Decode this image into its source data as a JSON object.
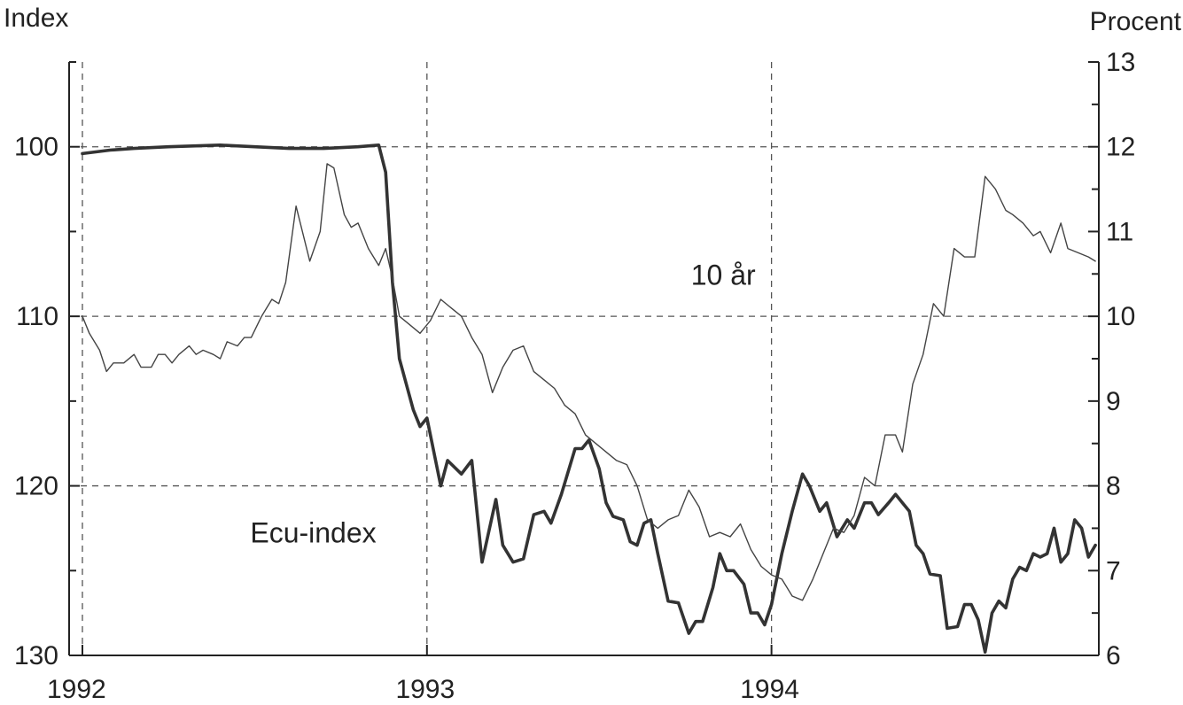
{
  "chart_data": {
    "type": "line",
    "title": "",
    "left_axis": {
      "label": "Index",
      "range": [
        130,
        95
      ],
      "inverted": true,
      "ticks": [
        100,
        110,
        120,
        130
      ]
    },
    "right_axis": {
      "label": "Procent",
      "range": [
        6,
        13
      ],
      "ticks": [
        6,
        7,
        8,
        9,
        10,
        11,
        12,
        13
      ]
    },
    "x_axis": {
      "range": [
        1992.0,
        1994.95
      ],
      "ticks": [
        1992,
        1993,
        1994
      ],
      "tick_labels": [
        "1992",
        "1993",
        "1994"
      ]
    },
    "grid": true,
    "grid_style": "dashed",
    "series": [
      {
        "name": "Ecu-index",
        "axis": "left",
        "color": "#333333",
        "stroke": "thick",
        "points": [
          [
            1992.0,
            100.4
          ],
          [
            1992.08,
            100.2
          ],
          [
            1992.15,
            100.1
          ],
          [
            1992.25,
            100.0
          ],
          [
            1992.4,
            99.9
          ],
          [
            1992.5,
            100.0
          ],
          [
            1992.6,
            100.1
          ],
          [
            1992.7,
            100.1
          ],
          [
            1992.8,
            100.0
          ],
          [
            1992.86,
            99.9
          ],
          [
            1992.88,
            101.5
          ],
          [
            1992.9,
            108.0
          ],
          [
            1992.92,
            112.5
          ],
          [
            1992.94,
            114.0
          ],
          [
            1992.96,
            115.5
          ],
          [
            1992.98,
            116.5
          ],
          [
            1993.0,
            116.0
          ],
          [
            1993.02,
            118.0
          ],
          [
            1993.04,
            120.0
          ],
          [
            1993.06,
            118.5
          ],
          [
            1993.1,
            119.3
          ],
          [
            1993.13,
            118.5
          ],
          [
            1993.16,
            124.5
          ],
          [
            1993.2,
            120.8
          ],
          [
            1993.22,
            123.5
          ],
          [
            1993.25,
            124.5
          ],
          [
            1993.28,
            124.3
          ],
          [
            1993.31,
            121.7
          ],
          [
            1993.34,
            121.5
          ],
          [
            1993.36,
            122.2
          ],
          [
            1993.39,
            120.5
          ],
          [
            1993.43,
            117.8
          ],
          [
            1993.45,
            117.8
          ],
          [
            1993.47,
            117.3
          ],
          [
            1993.5,
            119.0
          ],
          [
            1993.52,
            121.0
          ],
          [
            1993.54,
            121.8
          ],
          [
            1993.57,
            122.0
          ],
          [
            1993.59,
            123.3
          ],
          [
            1993.61,
            123.5
          ],
          [
            1993.63,
            122.2
          ],
          [
            1993.65,
            122.0
          ],
          [
            1993.67,
            124.0
          ],
          [
            1993.7,
            126.8
          ],
          [
            1993.73,
            126.9
          ],
          [
            1993.76,
            128.7
          ],
          [
            1993.78,
            128.0
          ],
          [
            1993.8,
            128.0
          ],
          [
            1993.83,
            126.0
          ],
          [
            1993.85,
            124.0
          ],
          [
            1993.87,
            125.0
          ],
          [
            1993.89,
            125.0
          ],
          [
            1993.92,
            125.8
          ],
          [
            1993.94,
            127.5
          ],
          [
            1993.96,
            127.5
          ],
          [
            1993.98,
            128.2
          ],
          [
            1994.0,
            127.0
          ],
          [
            1994.03,
            124.0
          ],
          [
            1994.06,
            121.5
          ],
          [
            1994.09,
            119.3
          ],
          [
            1994.11,
            120.0
          ],
          [
            1994.14,
            121.5
          ],
          [
            1994.16,
            121.0
          ],
          [
            1994.19,
            123.0
          ],
          [
            1994.22,
            122.0
          ],
          [
            1994.24,
            122.5
          ],
          [
            1994.27,
            121.0
          ],
          [
            1994.29,
            121.0
          ],
          [
            1994.31,
            121.7
          ],
          [
            1994.34,
            121.0
          ],
          [
            1994.36,
            120.5
          ],
          [
            1994.38,
            121.0
          ],
          [
            1994.4,
            121.5
          ],
          [
            1994.42,
            123.5
          ],
          [
            1994.44,
            124.0
          ],
          [
            1994.46,
            125.2
          ],
          [
            1994.49,
            125.3
          ],
          [
            1994.51,
            128.4
          ],
          [
            1994.54,
            128.3
          ],
          [
            1994.56,
            127.0
          ],
          [
            1994.58,
            127.0
          ],
          [
            1994.6,
            127.9
          ],
          [
            1994.62,
            129.8
          ],
          [
            1994.64,
            127.5
          ],
          [
            1994.66,
            126.8
          ],
          [
            1994.68,
            127.2
          ],
          [
            1994.7,
            125.5
          ],
          [
            1994.72,
            124.8
          ],
          [
            1994.74,
            125.0
          ],
          [
            1994.76,
            124.0
          ],
          [
            1994.78,
            124.2
          ],
          [
            1994.8,
            124.0
          ],
          [
            1994.82,
            122.5
          ],
          [
            1994.84,
            124.5
          ],
          [
            1994.86,
            124.0
          ],
          [
            1994.88,
            122.0
          ],
          [
            1994.9,
            122.5
          ],
          [
            1994.92,
            124.2
          ],
          [
            1994.94,
            123.5
          ]
        ]
      },
      {
        "name": "10 år",
        "axis": "right",
        "color": "#444444",
        "stroke": "thin",
        "points": [
          [
            1992.0,
            10.0
          ],
          [
            1992.02,
            9.8
          ],
          [
            1992.05,
            9.6
          ],
          [
            1992.07,
            9.35
          ],
          [
            1992.09,
            9.45
          ],
          [
            1992.12,
            9.45
          ],
          [
            1992.15,
            9.55
          ],
          [
            1992.17,
            9.4
          ],
          [
            1992.2,
            9.4
          ],
          [
            1992.22,
            9.55
          ],
          [
            1992.24,
            9.55
          ],
          [
            1992.26,
            9.45
          ],
          [
            1992.28,
            9.55
          ],
          [
            1992.31,
            9.65
          ],
          [
            1992.33,
            9.55
          ],
          [
            1992.35,
            9.6
          ],
          [
            1992.38,
            9.55
          ],
          [
            1992.4,
            9.5
          ],
          [
            1992.42,
            9.7
          ],
          [
            1992.45,
            9.65
          ],
          [
            1992.47,
            9.75
          ],
          [
            1992.49,
            9.75
          ],
          [
            1992.52,
            10.0
          ],
          [
            1992.55,
            10.2
          ],
          [
            1992.57,
            10.15
          ],
          [
            1992.59,
            10.4
          ],
          [
            1992.62,
            11.3
          ],
          [
            1992.66,
            10.65
          ],
          [
            1992.69,
            11.0
          ],
          [
            1992.71,
            11.8
          ],
          [
            1992.73,
            11.75
          ],
          [
            1992.76,
            11.2
          ],
          [
            1992.78,
            11.05
          ],
          [
            1992.8,
            11.1
          ],
          [
            1992.83,
            10.8
          ],
          [
            1992.86,
            10.6
          ],
          [
            1992.88,
            10.8
          ],
          [
            1992.9,
            10.45
          ],
          [
            1992.92,
            10.0
          ],
          [
            1992.95,
            9.9
          ],
          [
            1992.98,
            9.8
          ],
          [
            1993.01,
            9.95
          ],
          [
            1993.04,
            10.2
          ],
          [
            1993.07,
            10.1
          ],
          [
            1993.1,
            10.0
          ],
          [
            1993.13,
            9.75
          ],
          [
            1993.16,
            9.55
          ],
          [
            1993.19,
            9.1
          ],
          [
            1993.22,
            9.4
          ],
          [
            1993.25,
            9.6
          ],
          [
            1993.28,
            9.65
          ],
          [
            1993.31,
            9.35
          ],
          [
            1993.34,
            9.25
          ],
          [
            1993.37,
            9.15
          ],
          [
            1993.4,
            8.95
          ],
          [
            1993.43,
            8.85
          ],
          [
            1993.46,
            8.6
          ],
          [
            1993.49,
            8.5
          ],
          [
            1993.52,
            8.4
          ],
          [
            1993.55,
            8.3
          ],
          [
            1993.58,
            8.25
          ],
          [
            1993.61,
            8.0
          ],
          [
            1993.64,
            7.6
          ],
          [
            1993.67,
            7.5
          ],
          [
            1993.7,
            7.6
          ],
          [
            1993.73,
            7.65
          ],
          [
            1993.76,
            7.95
          ],
          [
            1993.79,
            7.75
          ],
          [
            1993.82,
            7.4
          ],
          [
            1993.85,
            7.45
          ],
          [
            1993.88,
            7.4
          ],
          [
            1993.91,
            7.55
          ],
          [
            1993.94,
            7.25
          ],
          [
            1993.97,
            7.05
          ],
          [
            1994.0,
            6.95
          ],
          [
            1994.03,
            6.9
          ],
          [
            1994.06,
            6.7
          ],
          [
            1994.09,
            6.65
          ],
          [
            1994.12,
            6.9
          ],
          [
            1994.15,
            7.2
          ],
          [
            1994.18,
            7.5
          ],
          [
            1994.21,
            7.45
          ],
          [
            1994.24,
            7.65
          ],
          [
            1994.27,
            8.1
          ],
          [
            1994.3,
            8.0
          ],
          [
            1994.33,
            8.6
          ],
          [
            1994.36,
            8.6
          ],
          [
            1994.38,
            8.4
          ],
          [
            1994.41,
            9.2
          ],
          [
            1994.44,
            9.55
          ],
          [
            1994.47,
            10.15
          ],
          [
            1994.5,
            10.0
          ],
          [
            1994.53,
            10.8
          ],
          [
            1994.56,
            10.7
          ],
          [
            1994.59,
            10.7
          ],
          [
            1994.62,
            11.65
          ],
          [
            1994.65,
            11.5
          ],
          [
            1994.68,
            11.25
          ],
          [
            1994.7,
            11.2
          ],
          [
            1994.73,
            11.1
          ],
          [
            1994.76,
            10.95
          ],
          [
            1994.78,
            11.0
          ],
          [
            1994.81,
            10.75
          ],
          [
            1994.84,
            11.1
          ],
          [
            1994.86,
            10.8
          ],
          [
            1994.89,
            10.75
          ],
          [
            1994.92,
            10.7
          ],
          [
            1994.94,
            10.65
          ]
        ]
      }
    ],
    "annotations": [
      {
        "text": "10 år",
        "series": "10 år",
        "x": 1993.86,
        "y_right": 10.5
      },
      {
        "text": "Ecu-index",
        "series": "Ecu-index",
        "x": 1992.67,
        "y_left": 122.7
      }
    ]
  }
}
